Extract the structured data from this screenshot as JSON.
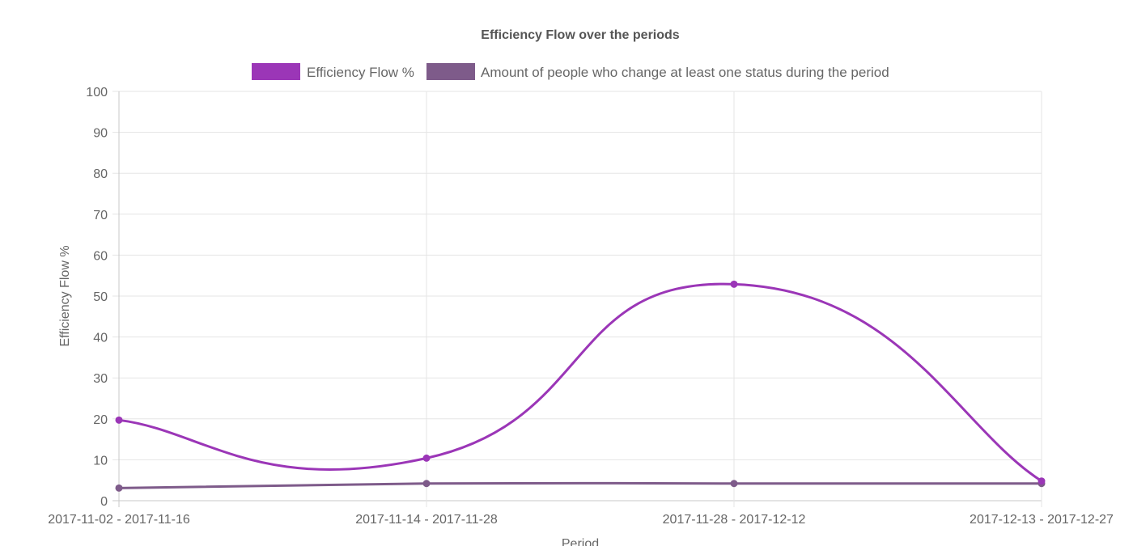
{
  "chart_data": {
    "type": "line",
    "title": "Efficiency Flow over the periods",
    "xlabel": "Period",
    "ylabel": "Efficiency Flow %",
    "categories": [
      "2017-11-02 - 2017-11-16",
      "2017-11-14 - 2017-11-28",
      "2017-11-28 - 2017-12-12",
      "2017-12-13 - 2017-12-27"
    ],
    "series": [
      {
        "name": "Efficiency Flow %",
        "color": "#9b36b7",
        "values": [
          19.7,
          10.4,
          52.9,
          4.8
        ]
      },
      {
        "name": "Amount of people who change at least one status during the period",
        "color": "#7e5b8a",
        "values": [
          3.1,
          4.2,
          4.2,
          4.2
        ]
      }
    ],
    "ylim": [
      0,
      100
    ],
    "yticks": [
      0,
      10,
      20,
      30,
      40,
      50,
      60,
      70,
      80,
      90,
      100
    ],
    "grid": true,
    "legend_position": "top-center"
  }
}
